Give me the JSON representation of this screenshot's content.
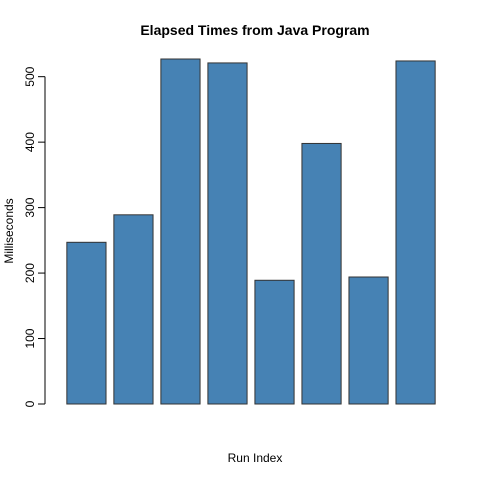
{
  "chart_data": {
    "type": "bar",
    "title": "Elapsed Times from Java Program",
    "xlabel": "Run Index",
    "ylabel": "Milliseconds",
    "values": [
      247,
      289,
      527,
      521,
      189,
      398,
      194,
      524
    ],
    "ylim": [
      0,
      527
    ],
    "yticks": [
      0,
      100,
      200,
      300,
      400,
      500
    ],
    "bar_color": "#4682B4",
    "bar_border_color": "#333333",
    "grid": false,
    "legend": "none"
  }
}
